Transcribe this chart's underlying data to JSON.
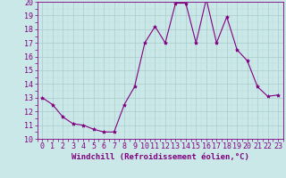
{
  "x": [
    0,
    1,
    2,
    3,
    4,
    5,
    6,
    7,
    8,
    9,
    10,
    11,
    12,
    13,
    14,
    15,
    16,
    17,
    18,
    19,
    20,
    21,
    22,
    23
  ],
  "y": [
    13.0,
    12.5,
    11.6,
    11.1,
    11.0,
    10.7,
    10.5,
    10.5,
    12.5,
    13.8,
    17.0,
    18.2,
    17.0,
    19.9,
    19.9,
    17.0,
    20.2,
    17.0,
    18.9,
    16.5,
    15.7,
    13.8,
    13.1,
    13.2
  ],
  "xlabel": "Windchill (Refroidissement éolien,°C)",
  "ylim": [
    10,
    20
  ],
  "xlim_min": -0.5,
  "xlim_max": 23.5,
  "line_color": "#800080",
  "marker_color": "#800080",
  "bg_color": "#cbe8e8",
  "grid_major_color": "#aacccc",
  "grid_minor_color": "#bbdddd",
  "label_color": "#800080",
  "yticks": [
    10,
    11,
    12,
    13,
    14,
    15,
    16,
    17,
    18,
    19,
    20
  ],
  "xticks": [
    0,
    1,
    2,
    3,
    4,
    5,
    6,
    7,
    8,
    9,
    10,
    11,
    12,
    13,
    14,
    15,
    16,
    17,
    18,
    19,
    20,
    21,
    22,
    23
  ],
  "xlabel_fontsize": 6.5,
  "tick_fontsize": 6.0,
  "linewidth": 0.8,
  "markersize": 3.0
}
